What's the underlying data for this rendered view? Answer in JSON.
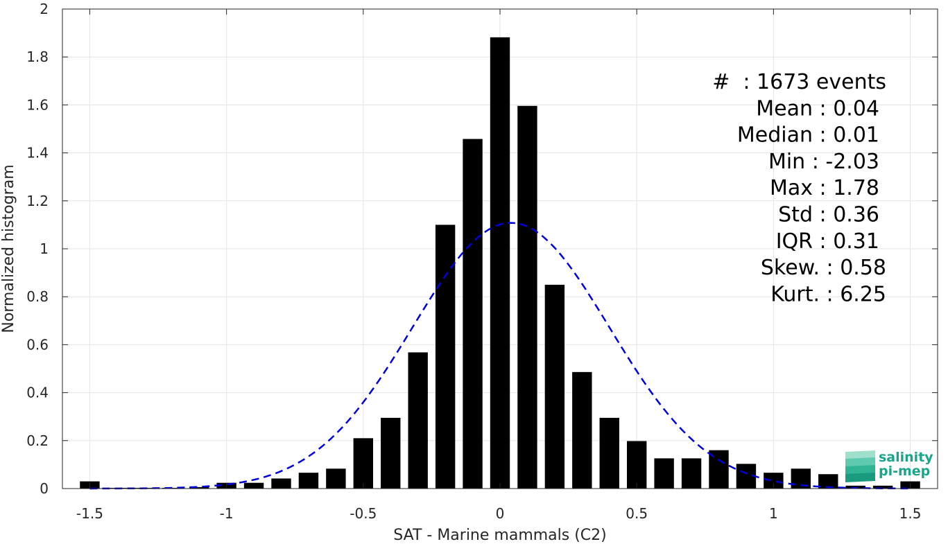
{
  "chart_data": {
    "type": "bar",
    "xlabel": "SAT - Marine mammals (C2)",
    "ylabel": "Normalized histogram",
    "xlim": [
      -1.6,
      1.6
    ],
    "ylim": [
      0,
      2
    ],
    "xticks": [
      -1.5,
      -1,
      -0.5,
      0,
      0.5,
      1,
      1.5
    ],
    "xtick_labels": [
      "-1.5",
      "-1",
      "-0.5",
      "0",
      "0.5",
      "1",
      "1.5"
    ],
    "yticks": [
      0,
      0.2,
      0.4,
      0.6,
      0.8,
      1,
      1.2,
      1.4,
      1.6,
      1.8,
      2
    ],
    "ytick_labels": [
      "0",
      "0.2",
      "0.4",
      "0.6",
      "0.8",
      "1",
      "1.2",
      "1.4",
      "1.6",
      "1.8",
      "2"
    ],
    "grid": true,
    "bar_color": "#000000",
    "bin_width": 0.1,
    "x": [
      -1.5,
      -1.4,
      -1.3,
      -1.2,
      -1.1,
      -1.0,
      -0.9,
      -0.8,
      -0.7,
      -0.6,
      -0.5,
      -0.4,
      -0.3,
      -0.2,
      -0.1,
      0.0,
      0.1,
      0.2,
      0.3,
      0.4,
      0.5,
      0.6,
      0.7,
      0.8,
      0.9,
      1.0,
      1.1,
      1.2,
      1.3,
      1.4,
      1.5
    ],
    "values": [
      0.03,
      0.003,
      0.003,
      0.003,
      0.006,
      0.024,
      0.024,
      0.042,
      0.066,
      0.083,
      0.21,
      0.295,
      0.568,
      1.1,
      1.458,
      1.882,
      1.596,
      0.85,
      0.486,
      0.295,
      0.198,
      0.126,
      0.126,
      0.16,
      0.103,
      0.066,
      0.083,
      0.06,
      0.012,
      0.012,
      0.03
    ],
    "fit_curve": {
      "style": "dashed",
      "color": "#0000dd",
      "mean": 0.04,
      "std": 0.36
    },
    "stats": [
      "#  : 1673 events",
      "Mean : 0.04",
      "Median : 0.01",
      "Min : -2.03",
      "Max : 1.78",
      "Std : 0.36",
      "IQR : 0.31",
      "Skew. : 0.58",
      "Kurt. : 6.25"
    ]
  },
  "logo": {
    "line1": "salinity",
    "line2": "pi-mep",
    "color": "#1aa58a"
  }
}
